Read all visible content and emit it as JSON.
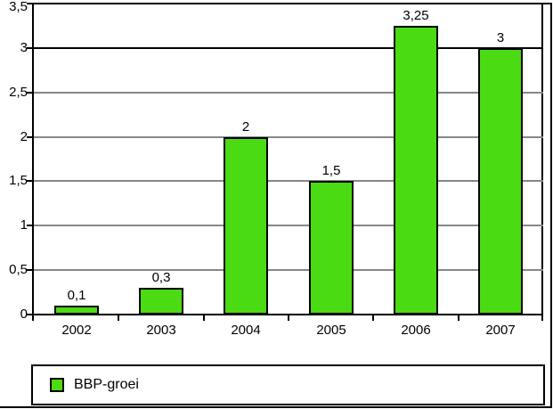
{
  "chart_data": {
    "type": "bar",
    "title": "",
    "xlabel": "",
    "ylabel": "",
    "categories": [
      "2002",
      "2003",
      "2004",
      "2005",
      "2006",
      "2007"
    ],
    "series": [
      {
        "name": "BBP-groei",
        "values": [
          0.1,
          0.3,
          2,
          1.5,
          3.25,
          3
        ],
        "value_labels": [
          "0,1",
          "0,3",
          "2",
          "1,5",
          "3,25",
          "3"
        ]
      }
    ],
    "ylim": [
      0,
      3.5
    ],
    "y_ticks": [
      {
        "label": "3,5",
        "value": 3.5
      },
      {
        "label": "3",
        "value": 3
      },
      {
        "label": "2,5",
        "value": 2.5
      },
      {
        "label": "2",
        "value": 2
      },
      {
        "label": "1,5",
        "value": 1.5
      },
      {
        "label": "1",
        "value": 1
      },
      {
        "label": "0,5",
        "value": 0.5
      },
      {
        "label": "0",
        "value": 0
      }
    ],
    "grid": true,
    "emphasized_gridline_values": [
      3.5,
      3
    ],
    "decimal_separator": ",",
    "legend": {
      "position": "bottom",
      "entries": [
        "BBP-groei"
      ]
    }
  },
  "colors": {
    "bar_fill": "#4ADB12",
    "bar_border": "#000000",
    "gridline": "#878787",
    "gridline_emphasized": "#000000",
    "axis": "#000000",
    "background": "#FFFFFF",
    "text": "#000000"
  }
}
